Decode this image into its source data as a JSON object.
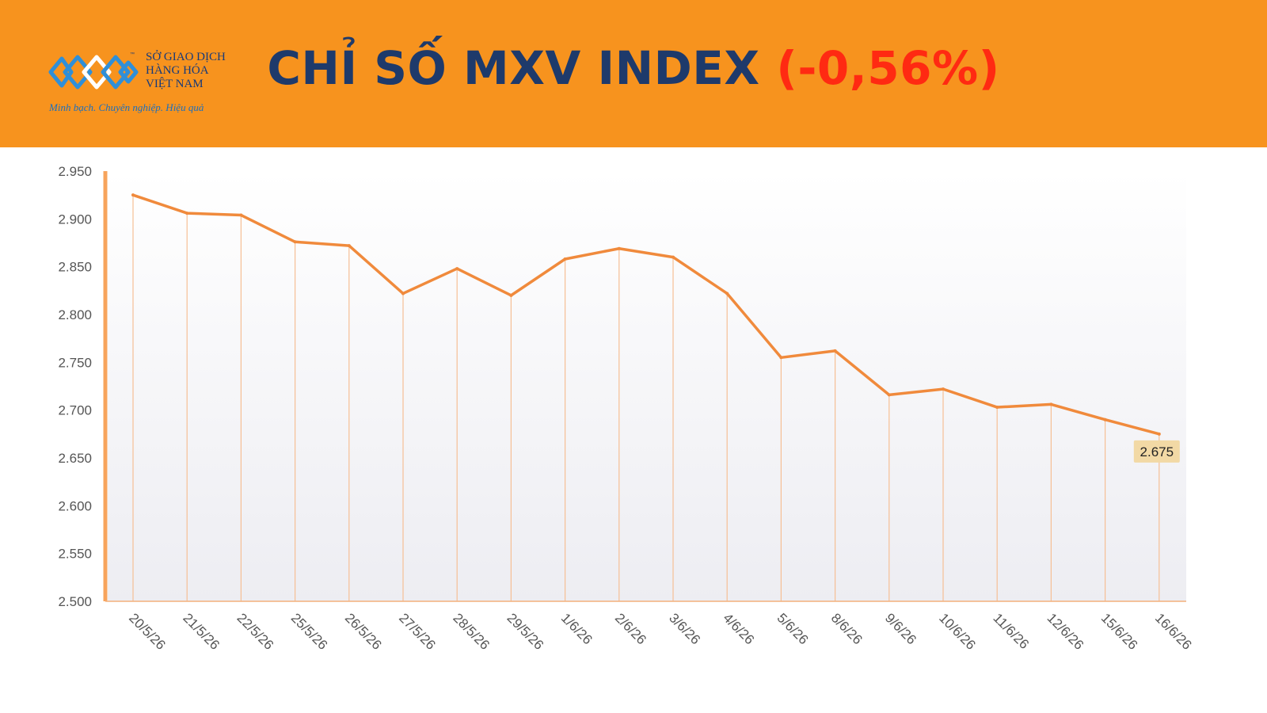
{
  "header": {
    "title": "CHỈ SỐ MXV INDEX",
    "change": "(-0,56%)",
    "logo": {
      "line1": "SỞ GIAO DỊCH",
      "line2": "HÀNG HÓA",
      "line3": "VIỆT NAM",
      "tm": "™",
      "tagline": "Minh bạch. Chuyên nghiệp. Hiệu quả"
    }
  },
  "colors": {
    "header_bg": "#f7931e",
    "title": "#1e3a6b",
    "change": "#ff2a12",
    "line": "#f08a3c",
    "label_bg": "#f2d9a5"
  },
  "chart_data": {
    "type": "area",
    "categories": [
      "20/5/26",
      "21/5/26",
      "22/5/26",
      "25/5/26",
      "26/5/26",
      "27/5/26",
      "28/5/26",
      "29/5/26",
      "1/6/26",
      "2/6/26",
      "3/6/26",
      "4/6/26",
      "5/6/26",
      "8/6/26",
      "9/6/26",
      "10/6/26",
      "11/6/26",
      "12/6/26",
      "15/6/26",
      "16/6/26"
    ],
    "series": [
      {
        "values": [
          2925,
          2906,
          2904,
          2876,
          2872,
          2822,
          2848,
          2820,
          2858,
          2869,
          2860,
          2822,
          2755,
          2762,
          2716,
          2722,
          2703,
          2706,
          2690,
          2675
        ]
      }
    ],
    "ylim": [
      2500,
      2950
    ],
    "yticks": [
      "2.950",
      "2.900",
      "2.850",
      "2.800",
      "2.750",
      "2.700",
      "2.650",
      "2.600",
      "2.550",
      "2.500"
    ],
    "ytick_values": [
      2950,
      2900,
      2850,
      2800,
      2750,
      2700,
      2650,
      2600,
      2550,
      2500
    ],
    "last_value_label": "2.675",
    "title": "",
    "xlabel": "",
    "ylabel": "",
    "grid": "vertical drop lines at each date",
    "legend": "none"
  }
}
